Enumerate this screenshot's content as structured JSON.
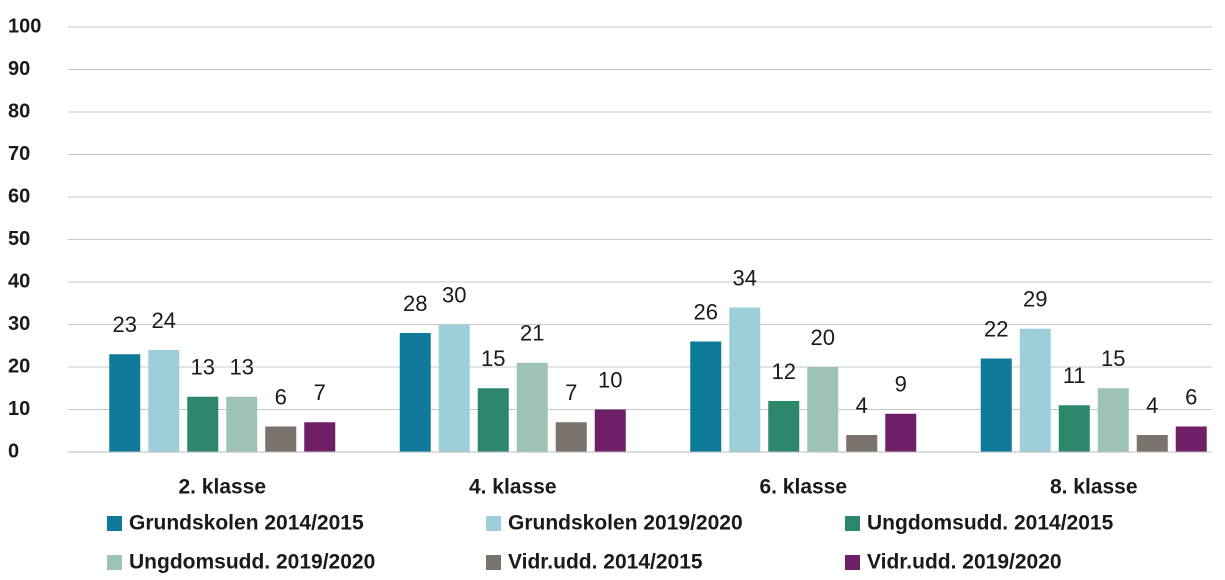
{
  "chart_data": {
    "type": "bar",
    "categories": [
      "2. klasse",
      "4. klasse",
      "6. klasse",
      "8. klasse"
    ],
    "series": [
      {
        "name": "Grundskolen 2014/2015",
        "color": "#0f7a99",
        "values": [
          23,
          28,
          26,
          22
        ]
      },
      {
        "name": "Grundskolen 2019/2020",
        "color": "#9dcfdb",
        "values": [
          24,
          30,
          34,
          29
        ]
      },
      {
        "name": "Ungdomsudd. 2014/2015",
        "color": "#2c876c",
        "values": [
          13,
          15,
          12,
          11
        ]
      },
      {
        "name": "Ungdomsudd. 2019/2020",
        "color": "#9cc3b4",
        "values": [
          13,
          21,
          20,
          15
        ]
      },
      {
        "name": "Vidr.udd. 2014/2015",
        "color": "#7a726c",
        "values": [
          6,
          7,
          4,
          4
        ]
      },
      {
        "name": "Vidr.udd. 2019/2020",
        "color": "#6e1f65",
        "values": [
          7,
          10,
          9,
          6
        ]
      }
    ],
    "ylim": [
      0,
      100
    ],
    "yticks": [
      0,
      10,
      20,
      30,
      40,
      50,
      60,
      70,
      80,
      90,
      100
    ],
    "grid": true,
    "legend": "bottom"
  }
}
